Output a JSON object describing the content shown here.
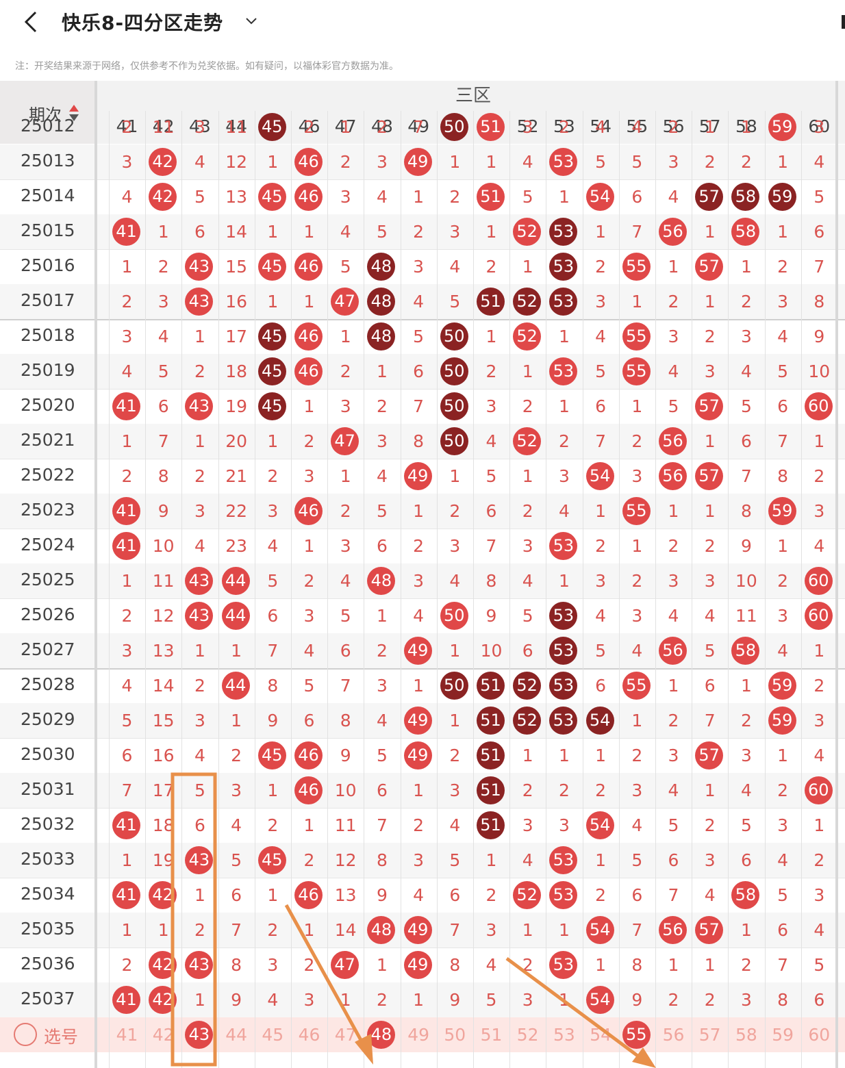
{
  "header": {
    "title": "快乐8-四分区走势"
  },
  "note": "注：开奖结果来源于网络，仅供参考不作为兑奖依据。如有疑问，以福体彩官方数据为准。",
  "table": {
    "period_header": "期次",
    "zone_label": "三区",
    "columns": [
      "41",
      "42",
      "43",
      "44",
      "45",
      "46",
      "47",
      "48",
      "49",
      "50",
      "51",
      "52",
      "53",
      "54",
      "55",
      "56",
      "57",
      "58",
      "59",
      "60"
    ],
    "rows": [
      {
        "period": "25012",
        "cells": [
          "2",
          "11",
          "3",
          "11",
          "45",
          "2",
          "1",
          "2",
          "7",
          "50",
          "51",
          "3",
          "2",
          "4",
          "4",
          "2",
          "1",
          "1",
          "59",
          "3"
        ]
      },
      {
        "period": "25013",
        "cells": [
          "3",
          "42",
          "4",
          "12",
          "1",
          "46",
          "2",
          "3",
          "49",
          "1",
          "1",
          "4",
          "53",
          "5",
          "5",
          "3",
          "2",
          "2",
          "1",
          "4"
        ]
      },
      {
        "period": "25014",
        "cells": [
          "4",
          "42",
          "5",
          "13",
          "45",
          "46",
          "3",
          "4",
          "1",
          "2",
          "51",
          "5",
          "1",
          "54",
          "6",
          "4",
          "57",
          "58",
          "59",
          "5"
        ]
      },
      {
        "period": "25015",
        "cells": [
          "41",
          "1",
          "6",
          "14",
          "1",
          "1",
          "4",
          "5",
          "2",
          "3",
          "1",
          "52",
          "53",
          "1",
          "7",
          "56",
          "1",
          "58",
          "1",
          "6"
        ]
      },
      {
        "period": "25016",
        "cells": [
          "1",
          "2",
          "43",
          "15",
          "45",
          "46",
          "5",
          "48",
          "3",
          "4",
          "2",
          "1",
          "53",
          "2",
          "55",
          "1",
          "57",
          "1",
          "2",
          "7"
        ]
      },
      {
        "period": "25017",
        "cells": [
          "2",
          "3",
          "43",
          "16",
          "1",
          "1",
          "47",
          "48",
          "4",
          "5",
          "51",
          "52",
          "53",
          "3",
          "1",
          "2",
          "1",
          "2",
          "3",
          "8"
        ]
      },
      {
        "period": "25018",
        "cells": [
          "3",
          "4",
          "1",
          "17",
          "45",
          "46",
          "1",
          "48",
          "5",
          "50",
          "1",
          "52",
          "1",
          "4",
          "55",
          "3",
          "2",
          "3",
          "4",
          "9"
        ]
      },
      {
        "period": "25019",
        "cells": [
          "4",
          "5",
          "2",
          "18",
          "45",
          "46",
          "2",
          "1",
          "6",
          "50",
          "2",
          "1",
          "53",
          "5",
          "55",
          "4",
          "3",
          "4",
          "5",
          "10"
        ]
      },
      {
        "period": "25020",
        "cells": [
          "41",
          "6",
          "43",
          "19",
          "45",
          "1",
          "3",
          "2",
          "7",
          "50",
          "3",
          "2",
          "1",
          "6",
          "1",
          "5",
          "57",
          "5",
          "6",
          "60"
        ]
      },
      {
        "period": "25021",
        "cells": [
          "1",
          "7",
          "1",
          "20",
          "1",
          "2",
          "47",
          "3",
          "8",
          "50",
          "4",
          "52",
          "2",
          "7",
          "2",
          "56",
          "1",
          "6",
          "7",
          "1"
        ]
      },
      {
        "period": "25022",
        "cells": [
          "2",
          "8",
          "2",
          "21",
          "2",
          "3",
          "1",
          "4",
          "49",
          "1",
          "5",
          "1",
          "3",
          "54",
          "3",
          "56",
          "57",
          "7",
          "8",
          "2"
        ]
      },
      {
        "period": "25023",
        "cells": [
          "41",
          "9",
          "3",
          "22",
          "3",
          "46",
          "2",
          "5",
          "1",
          "2",
          "6",
          "2",
          "4",
          "1",
          "55",
          "1",
          "1",
          "8",
          "59",
          "3"
        ]
      },
      {
        "period": "25024",
        "cells": [
          "41",
          "10",
          "4",
          "23",
          "4",
          "1",
          "3",
          "6",
          "2",
          "3",
          "7",
          "3",
          "53",
          "2",
          "1",
          "2",
          "2",
          "9",
          "1",
          "4"
        ]
      },
      {
        "period": "25025",
        "cells": [
          "1",
          "11",
          "43",
          "44",
          "5",
          "2",
          "4",
          "48",
          "3",
          "4",
          "8",
          "4",
          "1",
          "3",
          "2",
          "3",
          "3",
          "10",
          "2",
          "60"
        ]
      },
      {
        "period": "25026",
        "cells": [
          "2",
          "12",
          "43",
          "44",
          "6",
          "3",
          "5",
          "1",
          "4",
          "50",
          "9",
          "5",
          "53",
          "4",
          "3",
          "4",
          "4",
          "11",
          "3",
          "60"
        ]
      },
      {
        "period": "25027",
        "cells": [
          "3",
          "13",
          "1",
          "1",
          "7",
          "4",
          "6",
          "2",
          "49",
          "1",
          "10",
          "6",
          "53",
          "5",
          "4",
          "56",
          "5",
          "58",
          "4",
          "1"
        ]
      },
      {
        "period": "25028",
        "cells": [
          "4",
          "14",
          "2",
          "44",
          "8",
          "5",
          "7",
          "3",
          "1",
          "50",
          "51",
          "52",
          "53",
          "6",
          "55",
          "1",
          "6",
          "1",
          "59",
          "2"
        ]
      },
      {
        "period": "25029",
        "cells": [
          "5",
          "15",
          "3",
          "1",
          "9",
          "6",
          "8",
          "4",
          "49",
          "1",
          "51",
          "52",
          "53",
          "54",
          "1",
          "2",
          "7",
          "2",
          "59",
          "3"
        ]
      },
      {
        "period": "25030",
        "cells": [
          "6",
          "16",
          "4",
          "2",
          "45",
          "46",
          "9",
          "5",
          "49",
          "2",
          "51",
          "1",
          "1",
          "1",
          "2",
          "3",
          "57",
          "3",
          "1",
          "4"
        ]
      },
      {
        "period": "25031",
        "cells": [
          "7",
          "17",
          "5",
          "3",
          "1",
          "46",
          "10",
          "6",
          "1",
          "3",
          "51",
          "2",
          "2",
          "2",
          "3",
          "4",
          "1",
          "4",
          "2",
          "60"
        ]
      },
      {
        "period": "25032",
        "cells": [
          "41",
          "18",
          "6",
          "4",
          "2",
          "1",
          "11",
          "7",
          "2",
          "4",
          "51",
          "3",
          "3",
          "54",
          "4",
          "5",
          "2",
          "5",
          "3",
          "1"
        ]
      },
      {
        "period": "25033",
        "cells": [
          "1",
          "19",
          "43",
          "5",
          "45",
          "2",
          "12",
          "8",
          "3",
          "5",
          "1",
          "4",
          "53",
          "1",
          "5",
          "6",
          "3",
          "6",
          "4",
          "2"
        ]
      },
      {
        "period": "25034",
        "cells": [
          "41",
          "42",
          "1",
          "6",
          "1",
          "46",
          "13",
          "9",
          "4",
          "6",
          "2",
          "52",
          "53",
          "2",
          "6",
          "7",
          "4",
          "58",
          "5",
          "3"
        ]
      },
      {
        "period": "25035",
        "cells": [
          "1",
          "1",
          "2",
          "7",
          "2",
          "1",
          "14",
          "48",
          "49",
          "7",
          "3",
          "1",
          "1",
          "54",
          "7",
          "56",
          "57",
          "1",
          "6",
          "4"
        ]
      },
      {
        "period": "25036",
        "cells": [
          "2",
          "42",
          "43",
          "8",
          "3",
          "2",
          "47",
          "1",
          "49",
          "8",
          "4",
          "2",
          "53",
          "1",
          "8",
          "1",
          "1",
          "2",
          "7",
          "5"
        ]
      },
      {
        "period": "25037",
        "cells": [
          "41",
          "42",
          "1",
          "9",
          "4",
          "3",
          "1",
          "2",
          "1",
          "9",
          "5",
          "3",
          "1",
          "54",
          "9",
          "2",
          "2",
          "3",
          "8",
          "6"
        ]
      }
    ],
    "select_row": {
      "label": "选号",
      "cells": [
        "41",
        "42",
        "43",
        "44",
        "45",
        "46",
        "47",
        "48",
        "49",
        "50",
        "51",
        "52",
        "53",
        "54",
        "55",
        "56",
        "57",
        "58",
        "59",
        "60"
      ]
    }
  },
  "colors": {
    "hit_red": "#e04848",
    "hit_dark": "#8b2323",
    "miss_text": "#d9534f",
    "annotation": "#e8904a"
  }
}
